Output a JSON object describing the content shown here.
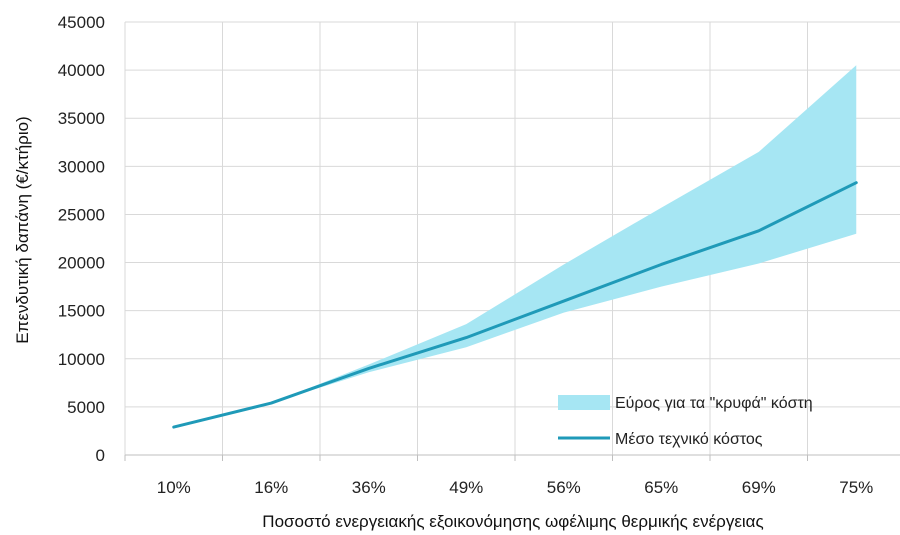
{
  "chart_data": {
    "type": "line",
    "categories": [
      "10%",
      "16%",
      "36%",
      "49%",
      "56%",
      "65%",
      "69%",
      "75%"
    ],
    "series": [
      {
        "name": "Μέσο τεχνικό κόστος",
        "kind": "line",
        "values": [
          2900,
          5400,
          9000,
          12200,
          16000,
          19800,
          23300,
          28300
        ]
      },
      {
        "name": "Εύρος για τα \"κρυφά\" κόστη",
        "kind": "range",
        "lower": [
          2900,
          5400,
          8600,
          11200,
          14800,
          17500,
          19900,
          23000
        ],
        "upper": [
          2900,
          5400,
          9400,
          13600,
          19800,
          25700,
          31500,
          40500
        ]
      }
    ],
    "xlabel": "Ποσοστό ενεργειακής εξοικονόμησης ωφέλιμης θερμικής ενέργειας",
    "ylabel": "Επενδυτική δαπάνη (€/κτήριο)",
    "ylim": [
      0,
      45000
    ],
    "yticks": [
      0,
      5000,
      10000,
      15000,
      20000,
      25000,
      30000,
      35000,
      40000,
      45000
    ],
    "grid": true,
    "legend_position": "bottom-right",
    "colors": {
      "line": "#1f9ab8",
      "band": "#a6e6f3",
      "grid": "#d9d9d9",
      "axis": "#bfbfbf"
    }
  }
}
